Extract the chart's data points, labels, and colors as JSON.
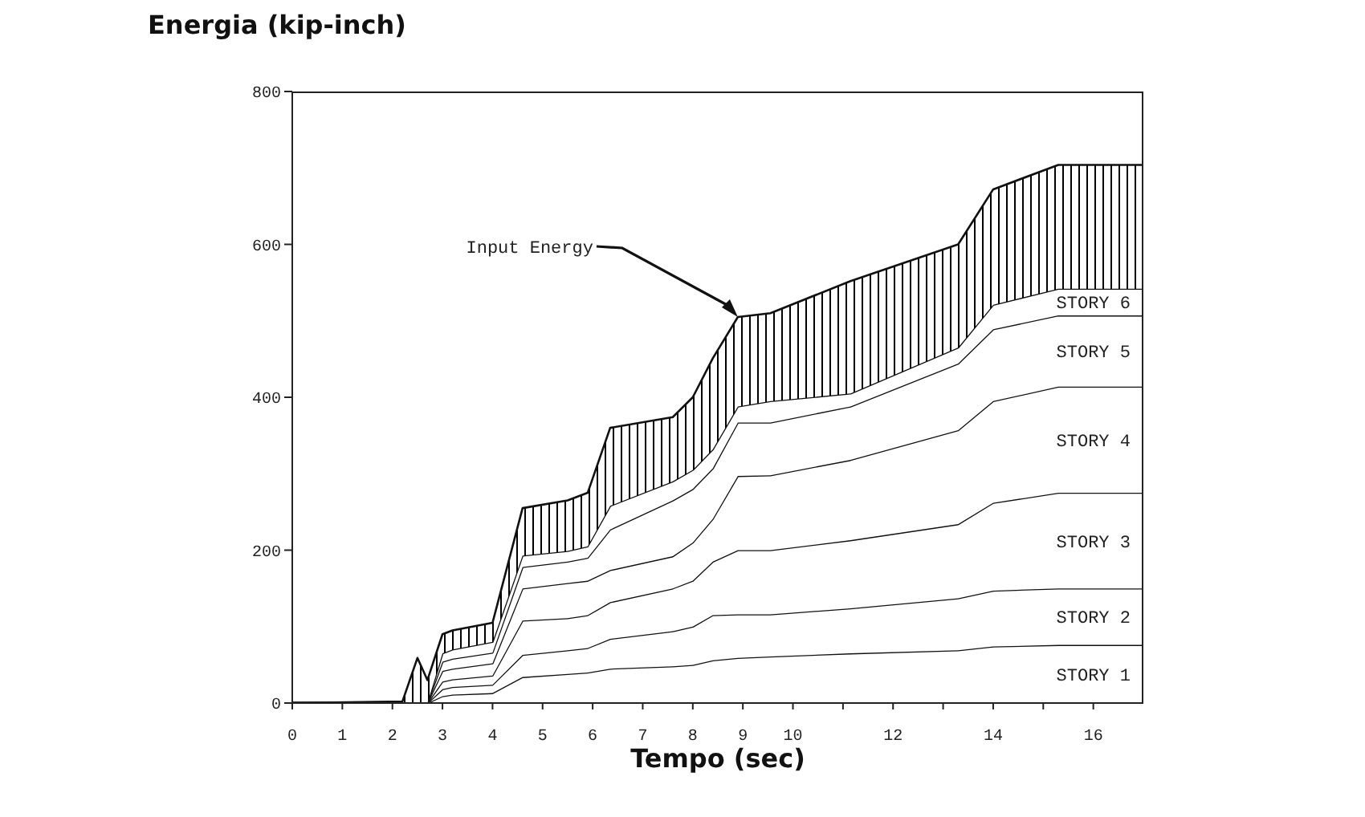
{
  "chart_data": {
    "type": "area",
    "stacked": true,
    "ylabel": "Energia (kip-inch)",
    "xlabel": "Tempo (sec)",
    "x": [
      0,
      2.2,
      2.5,
      2.7,
      3.0,
      3.2,
      4.0,
      4.6,
      5.5,
      5.9,
      6.35,
      7.6,
      8.0,
      8.4,
      8.9,
      9.55,
      11.15,
      13.3,
      14.0,
      15.3,
      17
    ],
    "series": [
      {
        "name": "STORY 1",
        "color": "#ffffff",
        "values": [
          0,
          0,
          0,
          0,
          9,
          11,
          13,
          34,
          38,
          40,
          45,
          48,
          50,
          56,
          59,
          61,
          65,
          69,
          74,
          76,
          76
        ]
      },
      {
        "name": "STORY 2",
        "color": "#ffffff",
        "values": [
          0,
          0,
          0,
          0,
          9,
          10,
          11,
          29,
          31,
          32,
          39,
          46,
          50,
          59,
          57,
          55,
          59,
          68,
          73,
          74,
          74
        ]
      },
      {
        "name": "STORY 3",
        "color": "#ffffff",
        "values": [
          0,
          0,
          0,
          0,
          10,
          10,
          12,
          45,
          42,
          43,
          48,
          56,
          60,
          70,
          84,
          84,
          89,
          97,
          115,
          125,
          125
        ]
      },
      {
        "name": "STORY 4",
        "color": "#ffffff",
        "values": [
          0,
          0,
          0,
          0,
          14,
          14,
          16,
          42,
          46,
          45,
          42,
          42,
          50,
          56,
          97,
          98,
          105,
          123,
          133,
          139,
          139
        ]
      },
      {
        "name": "STORY 5",
        "color": "#ffffff",
        "values": [
          0,
          0,
          0,
          0,
          12,
          13,
          14,
          28,
          28,
          30,
          53,
          73,
          70,
          66,
          70,
          69,
          70,
          87,
          94,
          93,
          93
        ]
      },
      {
        "name": "STORY 6",
        "color": "#ffffff",
        "values": [
          0,
          0,
          0,
          0,
          11,
          12,
          14,
          15,
          14,
          15,
          31,
          25,
          25,
          25,
          21,
          28,
          17,
          21,
          32,
          35,
          35
        ]
      },
      {
        "color": "#000000",
        "values": [
          0,
          2,
          59,
          30,
          25,
          25,
          25,
          62,
          66,
          70,
          102,
          84,
          95,
          119,
          117,
          115,
          147,
          135,
          151,
          162,
          162
        ]
      }
    ],
    "xlim": [
      0,
      17
    ],
    "xticks": [
      0,
      1,
      2,
      3,
      4,
      5,
      6,
      7,
      8,
      9,
      10,
      {
        "value": 11,
        "label": null
      },
      12,
      {
        "value": 13,
        "label": null
      },
      14,
      {
        "value": 15,
        "label": null
      },
      16
    ],
    "ylim": [
      0,
      800
    ],
    "yticks": [
      0,
      200,
      400,
      600,
      800
    ],
    "legend": false,
    "grid": false,
    "annotations": [
      {
        "text": "Input Energy",
        "x": 8.9,
        "y": 505
      }
    ]
  }
}
